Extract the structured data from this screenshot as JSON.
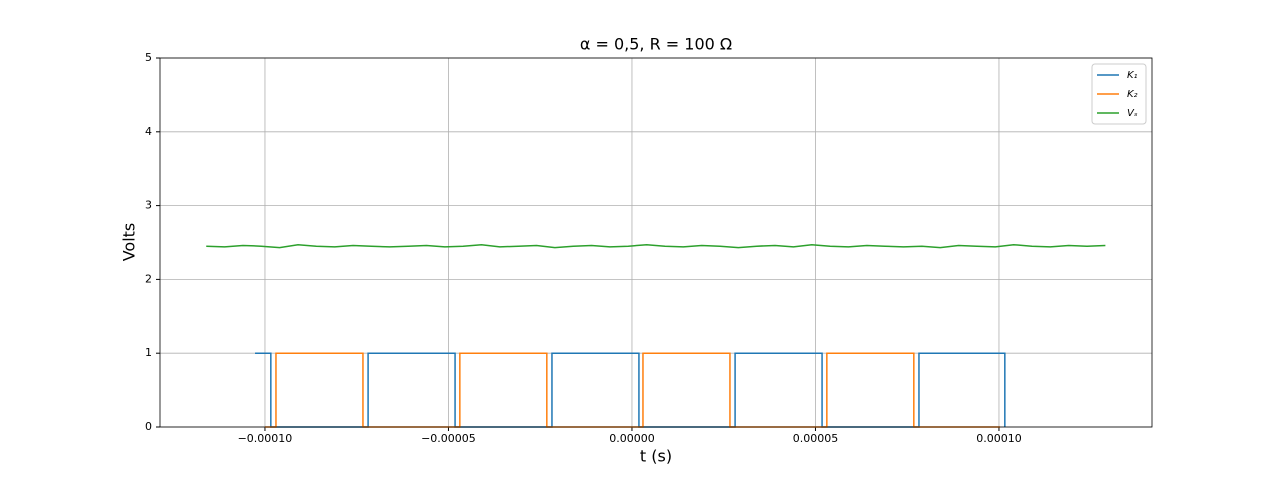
{
  "chart_data": {
    "type": "line",
    "title": "α = 0,5,  R = 100 Ω",
    "x_label": "t (s)",
    "y_label": "Volts",
    "xlim": [
      -0.0001286,
      0.0001417
    ],
    "ylim": [
      0,
      5
    ],
    "xticks": [
      {
        "value": -0.0001,
        "label": "−0.00010"
      },
      {
        "value": -5e-05,
        "label": "−0.00005"
      },
      {
        "value": 0,
        "label": "0.00000"
      },
      {
        "value": 5e-05,
        "label": "0.00005"
      },
      {
        "value": 0.0001,
        "label": "0.00010"
      }
    ],
    "yticks": [
      0,
      1,
      2,
      3,
      4,
      5
    ],
    "grid": true,
    "legend": "upper right",
    "series": [
      {
        "name": "K₁",
        "color": "#1f77b4",
        "x": [
          -0.0001027,
          -9.84e-05,
          -9.84e-05,
          -7.19e-05,
          -7.19e-05,
          -4.82e-05,
          -4.82e-05,
          -2.18e-05,
          -2.18e-05,
          1.9e-06,
          1.9e-06,
          2.81e-05,
          2.81e-05,
          5.18e-05,
          5.18e-05,
          7.82e-05,
          7.82e-05,
          0.0001016,
          0.0001016
        ],
        "values": [
          1,
          1,
          0,
          0,
          1,
          1,
          0,
          0,
          1,
          1,
          0,
          0,
          1,
          1,
          0,
          0,
          1,
          1,
          0
        ]
      },
      {
        "name": "K₂",
        "color": "#ff7f0e",
        "x": [
          -0.0001,
          -9.7e-05,
          -9.7e-05,
          -7.33e-05,
          -7.33e-05,
          -4.69e-05,
          -4.69e-05,
          -2.32e-05,
          -2.32e-05,
          3e-06,
          3e-06,
          2.67e-05,
          2.67e-05,
          5.31e-05,
          5.31e-05,
          7.68e-05,
          7.68e-05,
          0.0001003
        ],
        "values": [
          0,
          0,
          1,
          1,
          0,
          0,
          1,
          1,
          0,
          0,
          1,
          1,
          0,
          0,
          1,
          1,
          0,
          0
        ]
      },
      {
        "name": "Vₛ",
        "color": "#2ca02c",
        "x": [
          -0.000116,
          -0.000111,
          -0.000106,
          -0.000101,
          -9.6e-05,
          -9.1e-05,
          -8.6e-05,
          -8.1e-05,
          -7.6e-05,
          -7.1e-05,
          -6.6e-05,
          -6.1e-05,
          -5.6e-05,
          -5.1e-05,
          -4.6e-05,
          -4.1e-05,
          -3.6e-05,
          -3.1e-05,
          -2.6e-05,
          -2.1e-05,
          -1.6e-05,
          -1.1e-05,
          -6e-06,
          -1e-06,
          4e-06,
          9e-06,
          1.4e-05,
          1.9e-05,
          2.4e-05,
          2.9e-05,
          3.4e-05,
          3.9e-05,
          4.4e-05,
          4.9e-05,
          5.4e-05,
          5.9e-05,
          6.4e-05,
          6.9e-05,
          7.4e-05,
          7.9e-05,
          8.4e-05,
          8.9e-05,
          9.4e-05,
          9.9e-05,
          0.000104,
          0.000109,
          0.000114,
          0.000119,
          0.000124,
          0.000129
        ],
        "values": [
          2.45,
          2.44,
          2.46,
          2.45,
          2.43,
          2.47,
          2.45,
          2.44,
          2.46,
          2.45,
          2.44,
          2.45,
          2.46,
          2.44,
          2.45,
          2.47,
          2.44,
          2.45,
          2.46,
          2.43,
          2.45,
          2.46,
          2.44,
          2.45,
          2.47,
          2.45,
          2.44,
          2.46,
          2.45,
          2.43,
          2.45,
          2.46,
          2.44,
          2.47,
          2.45,
          2.44,
          2.46,
          2.45,
          2.44,
          2.45,
          2.43,
          2.46,
          2.45,
          2.44,
          2.47,
          2.45,
          2.44,
          2.46,
          2.45,
          2.46
        ]
      }
    ]
  }
}
